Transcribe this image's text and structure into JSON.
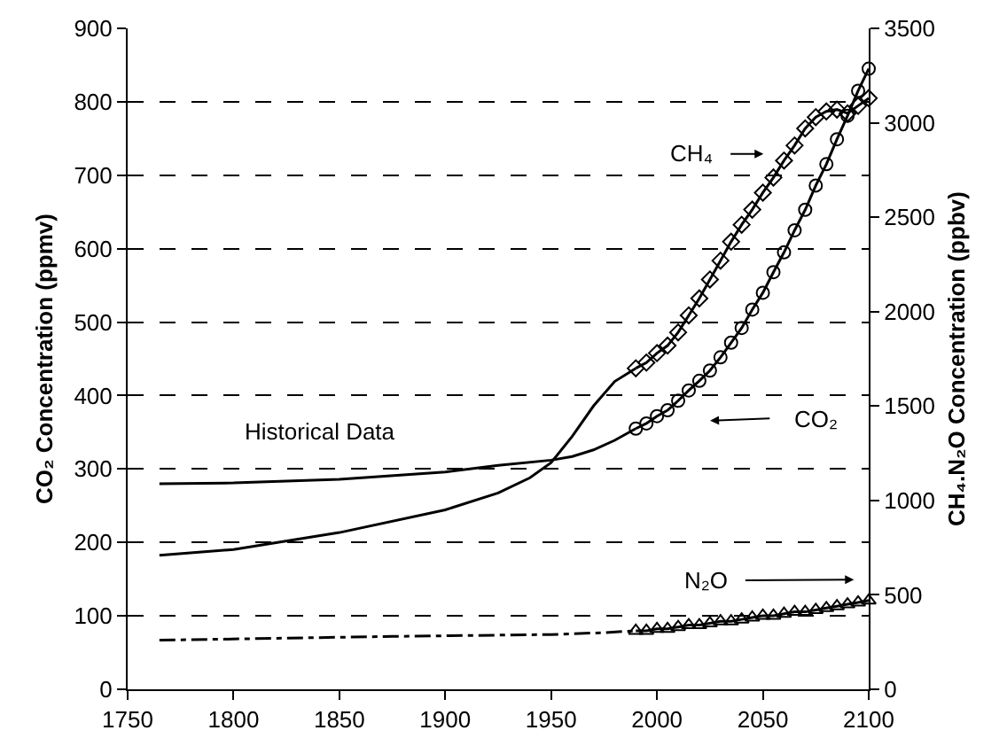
{
  "chart_data": {
    "type": "line",
    "ylabel": "CO₂ Concentration (ppmv)",
    "y2label": "CH₄.N₂O Concentration (ppbv)",
    "annotations": [
      "Historical Data",
      "CH₄",
      "CO₂",
      "N₂O"
    ],
    "xlim": [
      1750,
      2100
    ],
    "xticks": [
      1750,
      1800,
      1850,
      1900,
      1950,
      2000,
      2050,
      2100
    ],
    "ylim": [
      0,
      900
    ],
    "yticks": [
      0,
      100,
      200,
      300,
      400,
      500,
      600,
      700,
      800,
      900
    ],
    "y2lim": [
      0,
      3500
    ],
    "y2ticks": [
      0,
      500,
      1000,
      1500,
      2000,
      2500,
      3000,
      3500
    ],
    "grid": "y",
    "series": [
      {
        "color": "#000000",
        "marker": "none",
        "line_style": "solid",
        "x": [
          1765,
          1800,
          1850,
          1900,
          1925,
          1950,
          1960,
          1970,
          1980,
          1990
        ],
        "values": [
          280,
          281,
          286,
          296,
          305,
          312,
          317,
          326,
          339,
          355
        ]
      },
      {
        "color": "#000000",
        "marker": "circle",
        "line_style": "solid",
        "x": [
          1990,
          1995,
          2000,
          2005,
          2010,
          2015,
          2020,
          2025,
          2030,
          2035,
          2040,
          2045,
          2050,
          2055,
          2060,
          2065,
          2070,
          2075,
          2080,
          2085,
          2090,
          2095,
          2100
        ],
        "values": [
          355,
          362,
          372,
          380,
          393,
          407,
          420,
          434,
          452,
          472,
          492,
          517,
          540,
          568,
          595,
          625,
          653,
          686,
          715,
          749,
          781,
          815,
          845
        ]
      },
      {
        "color": "#000000",
        "marker": "none",
        "line_style": "solid",
        "axis": "y2",
        "x": [
          1765,
          1800,
          1850,
          1900,
          1925,
          1940,
          1950,
          1960,
          1970,
          1980,
          1990
        ],
        "values": [
          710,
          740,
          830,
          950,
          1040,
          1120,
          1200,
          1340,
          1500,
          1630,
          1700
        ]
      },
      {
        "color": "#000000",
        "marker": "diamond",
        "line_style": "solid",
        "axis": "y2",
        "x": [
          1990,
          1995,
          2000,
          2005,
          2010,
          2015,
          2020,
          2025,
          2030,
          2035,
          2040,
          2045,
          2050,
          2055,
          2060,
          2065,
          2070,
          2075,
          2080,
          2085,
          2090,
          2095,
          2100
        ],
        "values": [
          1700,
          1730,
          1780,
          1820,
          1890,
          1980,
          2070,
          2170,
          2270,
          2370,
          2460,
          2540,
          2630,
          2710,
          2800,
          2880,
          2970,
          3030,
          3060,
          3070,
          3050,
          3090,
          3130
        ]
      },
      {
        "color": "#000000",
        "marker": "none",
        "line_style": "dashed",
        "axis": "y2",
        "x": [
          1765,
          1875,
          1950,
          1975,
          1990
        ],
        "values": [
          260,
          280,
          290,
          300,
          310
        ]
      },
      {
        "color": "#000000",
        "marker": "triangle",
        "line_style": "solid",
        "axis": "y2",
        "x": [
          1990,
          1995,
          2000,
          2005,
          2010,
          2015,
          2020,
          2025,
          2030,
          2035,
          2040,
          2045,
          2050,
          2055,
          2060,
          2065,
          2070,
          2075,
          2080,
          2085,
          2090,
          2095,
          2100
        ],
        "values": [
          310,
          310,
          320,
          320,
          330,
          340,
          340,
          350,
          360,
          360,
          370,
          380,
          390,
          390,
          400,
          410,
          410,
          420,
          430,
          440,
          450,
          460,
          470
        ]
      }
    ]
  }
}
